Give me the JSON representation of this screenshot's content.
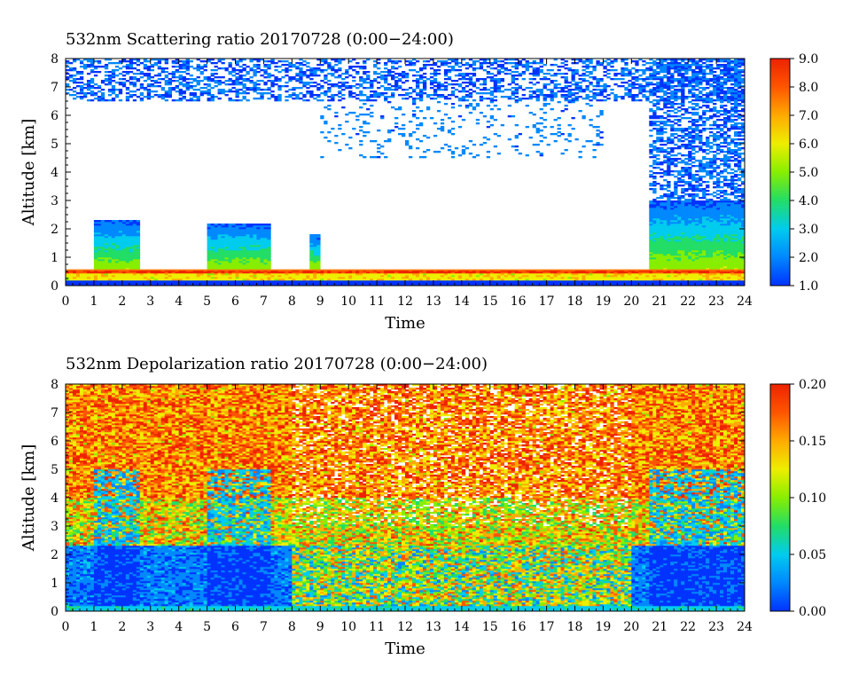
{
  "chart_data": [
    {
      "type": "heatmap",
      "title": "532nm Scattering ratio  20170728 (0:00−24:00)",
      "xlabel": "Time",
      "ylabel": "Altitude [km]",
      "x_ticks": [
        "0",
        "1",
        "2",
        "3",
        "4",
        "5",
        "6",
        "7",
        "8",
        "9",
        "10",
        "11",
        "12",
        "13",
        "14",
        "15",
        "16",
        "17",
        "18",
        "19",
        "20",
        "21",
        "22",
        "23",
        "24"
      ],
      "y_ticks": [
        "0",
        "1",
        "2",
        "3",
        "4",
        "5",
        "6",
        "7",
        "8"
      ],
      "xlim": [
        0,
        24
      ],
      "ylim": [
        0,
        8
      ],
      "colorbar": {
        "labels": [
          "1.0",
          "2.0",
          "3.0",
          "4.0",
          "5.0",
          "6.0",
          "7.0",
          "8.0",
          "9.0"
        ],
        "range": [
          1.0,
          9.0
        ],
        "colors": [
          "#0033ff",
          "#0088ff",
          "#00ccee",
          "#22dd66",
          "#88ee00",
          "#eeee00",
          "#ffaa00",
          "#ff5500",
          "#ee2200"
        ]
      },
      "features": {
        "boundary_layer_top_km": 0.55,
        "cloud_segments": [
          {
            "t_start": 1.0,
            "t_end": 2.6,
            "top_km": 2.3
          },
          {
            "t_start": 5.0,
            "t_end": 7.2,
            "top_km": 2.2
          },
          {
            "t_start": 8.6,
            "t_end": 9.0,
            "top_km": 1.8
          },
          {
            "t_start": 20.6,
            "t_end": 24.0,
            "top_km": 3.0
          }
        ],
        "high_cloud_base_km": 6.5
      }
    },
    {
      "type": "heatmap",
      "title": "532nm Depolarization ratio  20170728 (0:00−24:00)",
      "xlabel": "Time",
      "ylabel": "Altitude [km]",
      "x_ticks": [
        "0",
        "1",
        "2",
        "3",
        "4",
        "5",
        "6",
        "7",
        "8",
        "9",
        "10",
        "11",
        "12",
        "13",
        "14",
        "15",
        "16",
        "17",
        "18",
        "19",
        "20",
        "21",
        "22",
        "23",
        "24"
      ],
      "y_ticks": [
        "0",
        "1",
        "2",
        "3",
        "4",
        "5",
        "6",
        "7",
        "8"
      ],
      "xlim": [
        0,
        24
      ],
      "ylim": [
        0,
        8
      ],
      "colorbar": {
        "labels": [
          "0.00",
          "0.05",
          "0.10",
          "0.15",
          "0.20"
        ],
        "range": [
          0.0,
          0.2
        ],
        "colors": [
          "#0033ff",
          "#0088ff",
          "#00ccee",
          "#22dd66",
          "#88ee00",
          "#eeee00",
          "#ffaa00",
          "#ff5500",
          "#ee2200"
        ]
      }
    }
  ]
}
